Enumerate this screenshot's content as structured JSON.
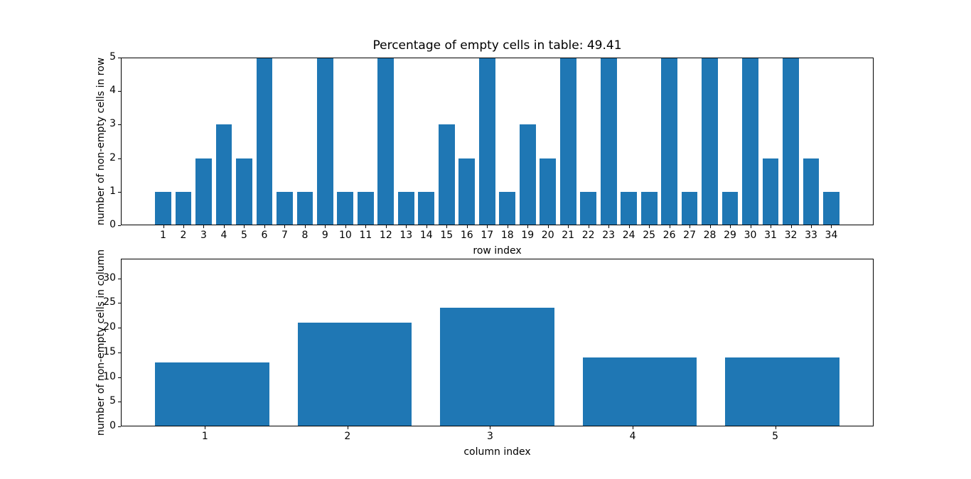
{
  "figure": {
    "background": "#ffffff",
    "bar_color": "#1f77b4"
  },
  "chart_data": [
    {
      "type": "bar",
      "title": "Percentage of empty cells in table: 49.41",
      "xlabel": "row index",
      "ylabel": "number of non-empty cells in row",
      "categories": [
        1,
        2,
        3,
        4,
        5,
        6,
        7,
        8,
        9,
        10,
        11,
        12,
        13,
        14,
        15,
        16,
        17,
        18,
        19,
        20,
        21,
        22,
        23,
        24,
        25,
        26,
        27,
        28,
        29,
        30,
        31,
        32,
        33,
        34
      ],
      "values": [
        1,
        1,
        2,
        3,
        2,
        5,
        1,
        1,
        5,
        1,
        1,
        5,
        1,
        1,
        3,
        2,
        5,
        1,
        3,
        2,
        5,
        1,
        5,
        1,
        1,
        5,
        1,
        5,
        1,
        5,
        2,
        5,
        2,
        1
      ],
      "bar_color": "#1f77b4",
      "bar_width": 0.8,
      "bar_offset": 0,
      "xlim": [
        -1.09,
        36.09
      ],
      "ylim": [
        0,
        5
      ],
      "yticks": [
        0,
        1,
        2,
        3,
        4,
        5
      ],
      "grid": false,
      "legend": null
    },
    {
      "type": "bar",
      "title": "",
      "xlabel": "column index",
      "ylabel": "number of non-empty cells in column",
      "categories": [
        1,
        2,
        3,
        4,
        5
      ],
      "values": [
        13,
        21,
        24,
        14,
        14
      ],
      "bar_color": "#1f77b4",
      "bar_width": 0.8,
      "bar_offset": 0.05,
      "xlim": [
        0.41,
        5.69
      ],
      "ylim": [
        0,
        34
      ],
      "yticks": [
        0,
        5,
        10,
        15,
        20,
        25,
        30
      ],
      "grid": false,
      "legend": null
    }
  ]
}
